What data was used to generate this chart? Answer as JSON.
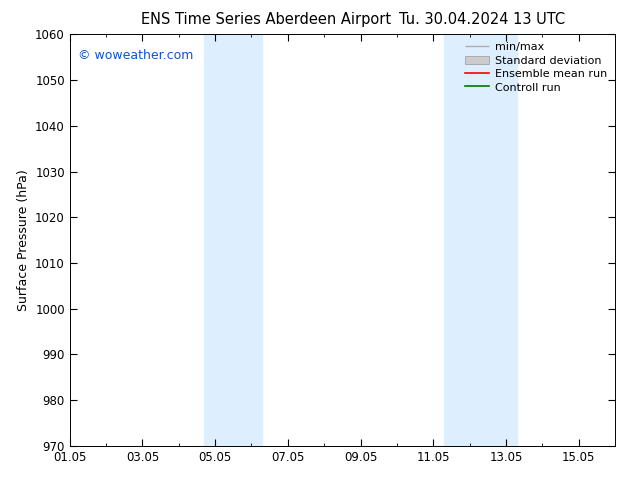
{
  "title_left": "ENS Time Series Aberdeen Airport",
  "title_right": "Tu. 30.04.2024 13 UTC",
  "ylabel": "Surface Pressure (hPa)",
  "ylim": [
    970,
    1060
  ],
  "yticks": [
    970,
    980,
    990,
    1000,
    1010,
    1020,
    1030,
    1040,
    1050,
    1060
  ],
  "xlim_start": 0,
  "xlim_end": 15,
  "xtick_labels": [
    "01.05",
    "03.05",
    "05.05",
    "07.05",
    "09.05",
    "11.05",
    "13.05",
    "15.05"
  ],
  "xtick_positions": [
    0,
    2,
    4,
    6,
    8,
    10,
    12,
    14
  ],
  "shaded_bands": [
    {
      "xmin": 3.7,
      "xmax": 5.3
    },
    {
      "xmin": 10.3,
      "xmax": 12.3
    }
  ],
  "band_color": "#ddeeff",
  "watermark": "© woweather.com",
  "watermark_color": "#1155cc",
  "legend_items": [
    {
      "label": "min/max",
      "color": "#aaaaaa",
      "type": "minmax"
    },
    {
      "label": "Standard deviation",
      "color": "#cccccc",
      "type": "fill"
    },
    {
      "label": "Ensemble mean run",
      "color": "#ff0000",
      "type": "line"
    },
    {
      "label": "Controll run",
      "color": "#007700",
      "type": "line"
    }
  ],
  "background_color": "#ffffff",
  "title_fontsize": 10.5,
  "tick_fontsize": 8.5,
  "ylabel_fontsize": 9,
  "legend_fontsize": 8,
  "watermark_fontsize": 9
}
